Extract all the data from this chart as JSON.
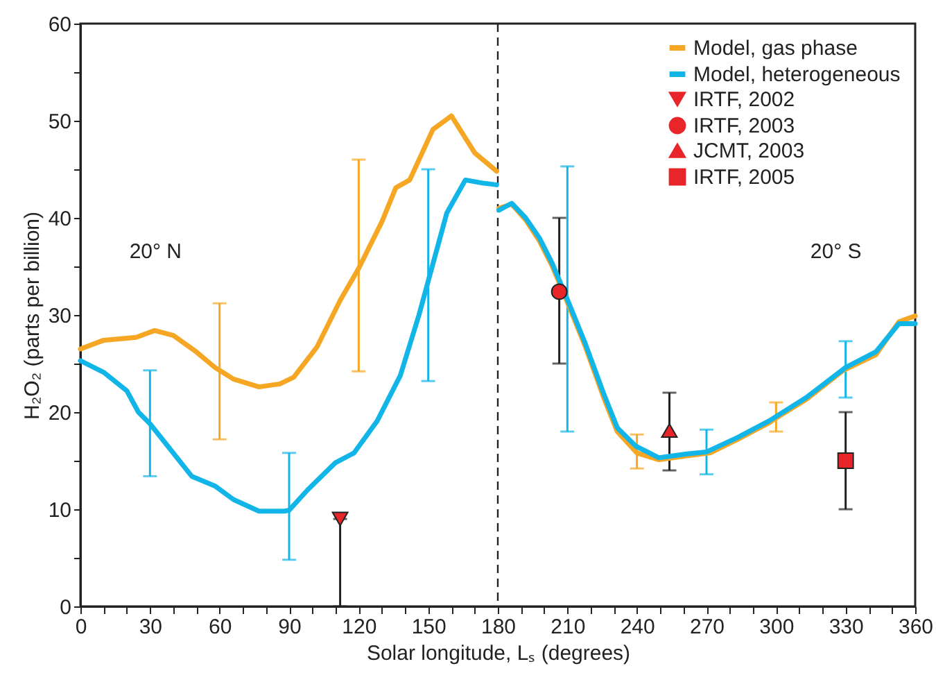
{
  "chart_data": {
    "type": "line",
    "xlabel": "Solar longitude, Lₛ (degrees)",
    "ylabel": "H₂O₂ (parts per billion)",
    "xlim": [
      0,
      360
    ],
    "ylim": [
      0,
      60
    ],
    "xticks": [
      0,
      {
        "value": 10,
        "label": null
      },
      {
        "value": 20,
        "label": null
      },
      30,
      {
        "value": 40,
        "label": null
      },
      {
        "value": 50,
        "label": null
      },
      60,
      {
        "value": 70,
        "label": null
      },
      {
        "value": 80,
        "label": null
      },
      90,
      {
        "value": 100,
        "label": null
      },
      {
        "value": 110,
        "label": null
      },
      120,
      {
        "value": 130,
        "label": null
      },
      {
        "value": 140,
        "label": null
      },
      150,
      {
        "value": 160,
        "label": null
      },
      {
        "value": 170,
        "label": null
      },
      180,
      {
        "value": 190,
        "label": null
      },
      {
        "value": 200,
        "label": null
      },
      210,
      {
        "value": 220,
        "label": null
      },
      {
        "value": 230,
        "label": null
      },
      240,
      {
        "value": 250,
        "label": null
      },
      {
        "value": 260,
        "label": null
      },
      270,
      {
        "value": 280,
        "label": null
      },
      {
        "value": 290,
        "label": null
      },
      300,
      {
        "value": 310,
        "label": null
      },
      {
        "value": 320,
        "label": null
      },
      330,
      {
        "value": 340,
        "label": null
      },
      {
        "value": 350,
        "label": null
      },
      360
    ],
    "yticks": [
      0,
      {
        "value": 5,
        "label": null
      },
      10,
      {
        "value": 15,
        "label": null
      },
      20,
      {
        "value": 25,
        "label": null
      },
      30,
      {
        "value": 35,
        "label": null
      },
      40,
      {
        "value": 45,
        "label": null
      },
      50,
      {
        "value": 55,
        "label": null
      },
      60
    ],
    "grid": false,
    "legend": "top right",
    "line_style": "solid",
    "ref_lines": [
      {
        "axis": "x",
        "value": 180,
        "color": "#222222",
        "line_style": "dashed"
      }
    ],
    "annotations": [
      "20° N",
      "20° S"
    ],
    "series": [
      {
        "name": "Model, gas phase",
        "color": "#f5a623",
        "x": [
          0,
          10,
          24,
          32,
          40,
          50,
          58,
          60,
          66,
          77,
          86,
          92,
          102,
          112,
          120,
          130,
          136,
          142,
          152,
          160,
          170,
          179.5,
          180,
          180.5,
          186,
          192,
          198,
          203.5,
          209.5,
          217.5,
          225.5,
          231.5,
          240,
          249.5,
          261.5,
          271.5,
          283.5,
          297,
          300,
          313,
          329,
          343,
          353,
          360
        ],
        "values": [
          26.5,
          27.4,
          27.7,
          28.4,
          27.9,
          26.2,
          24.6,
          24.3,
          23.4,
          22.6,
          22.9,
          23.6,
          26.7,
          31.5,
          34.8,
          39.6,
          43.1,
          43.9,
          49.1,
          50.5,
          46.7,
          44.8,
          null,
          41.0,
          41.4,
          39.8,
          37.6,
          35.0,
          31.6,
          26.9,
          21.6,
          18.0,
          15.8,
          15.1,
          15.5,
          15.8,
          17.2,
          18.9,
          19.4,
          21.3,
          24.3,
          25.9,
          29.3,
          29.9
        ],
        "errors": [
          null,
          null,
          null,
          null,
          null,
          null,
          null,
          [
            17.2,
            31.2
          ],
          null,
          null,
          null,
          null,
          null,
          null,
          [
            24.2,
            46
          ],
          null,
          null,
          null,
          null,
          null,
          null,
          null,
          null,
          null,
          null,
          null,
          null,
          null,
          null,
          null,
          null,
          null,
          [
            14.2,
            17.7
          ],
          null,
          null,
          null,
          null,
          null,
          [
            18,
            21
          ],
          null,
          null,
          null,
          null,
          null
        ]
      },
      {
        "name": "Model, heterogeneous",
        "color": "#12b5e8",
        "x": [
          0,
          10,
          20,
          25,
          30,
          40,
          48,
          58,
          66,
          77,
          88,
          90,
          98,
          110,
          118,
          128,
          138,
          146,
          150,
          158,
          166,
          173,
          179.5,
          180,
          180.5,
          186,
          192,
          198,
          203.5,
          210,
          217.5,
          225.5,
          231.5,
          239.5,
          249.5,
          261.5,
          270,
          283.5,
          297,
          313,
          330,
          343,
          353,
          360
        ],
        "values": [
          25.3,
          24.1,
          22.2,
          20,
          18.8,
          15.8,
          13.4,
          12.4,
          11,
          9.8,
          9.8,
          9.9,
          12,
          14.8,
          15.8,
          19.1,
          23.8,
          30,
          33.5,
          40.5,
          43.9,
          43.6,
          43.4,
          null,
          40.8,
          41.5,
          40,
          37.9,
          35.3,
          31.6,
          27.2,
          22,
          18.4,
          16.5,
          15.3,
          15.7,
          15.9,
          17.4,
          19.1,
          21.5,
          24.6,
          26.2,
          29.1,
          29.1
        ],
        "errors": [
          null,
          null,
          null,
          null,
          [
            13.4,
            24.3
          ],
          null,
          null,
          null,
          null,
          null,
          null,
          [
            4.8,
            15.8
          ],
          null,
          null,
          null,
          null,
          null,
          null,
          [
            23.2,
            45
          ],
          null,
          null,
          null,
          null,
          null,
          null,
          null,
          null,
          null,
          null,
          [
            18,
            45.3
          ],
          null,
          null,
          null,
          null,
          null,
          null,
          [
            13.6,
            18.2
          ],
          null,
          null,
          null,
          [
            21.5,
            27.3
          ],
          null,
          null,
          null
        ]
      },
      {
        "name": "IRTF, 2002",
        "type": "scatter",
        "marker": "triangle-down",
        "color": "#e8262a",
        "x": [
          112
        ],
        "values": [
          9
        ],
        "errors": [
          [
            0,
            9
          ]
        ]
      },
      {
        "name": "IRTF, 2003",
        "type": "scatter",
        "marker": "circle",
        "color": "#e8262a",
        "x": [
          206.5
        ],
        "values": [
          32.4
        ],
        "errors": [
          [
            25,
            40
          ]
        ]
      },
      {
        "name": "JCMT, 2003",
        "type": "scatter",
        "marker": "triangle",
        "color": "#e8262a",
        "x": [
          254
        ],
        "values": [
          18.1
        ],
        "errors": [
          [
            14,
            22
          ]
        ]
      },
      {
        "name": "IRTF, 2005",
        "type": "scatter",
        "marker": "square",
        "color": "#e8262a",
        "x": [
          330
        ],
        "values": [
          15
        ],
        "errors": [
          [
            10,
            20
          ]
        ]
      }
    ]
  }
}
